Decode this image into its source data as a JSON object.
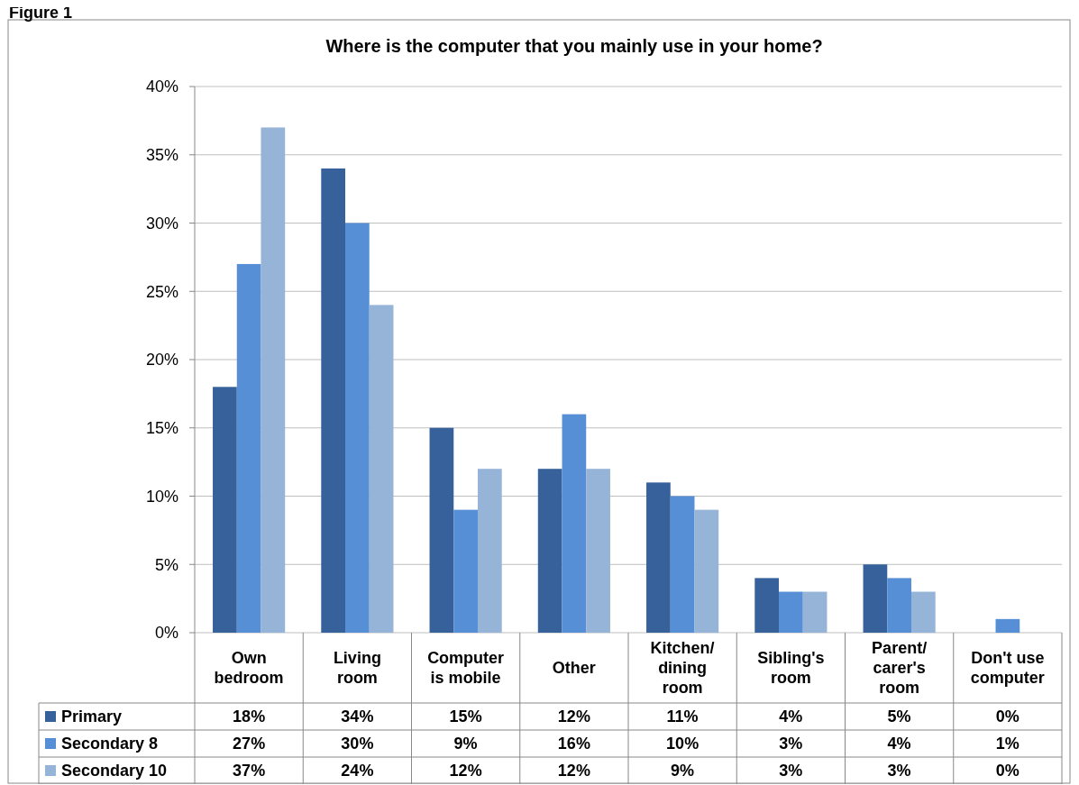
{
  "chart_data": {
    "type": "bar",
    "title": "Where is the computer that you mainly use in your home?",
    "annotations": [
      "Figure 1"
    ],
    "categories": [
      "Own bedroom",
      "Living room",
      "Computer is mobile",
      "Other",
      "Kitchen/ dining room",
      "Sibling's room",
      "Parent/ carer's room",
      "Don't use computer"
    ],
    "series": [
      {
        "name": "Primary",
        "color": "#36619a",
        "values": [
          18,
          34,
          15,
          12,
          11,
          4,
          5,
          0
        ],
        "value_labels": [
          "18%",
          "34%",
          "15%",
          "12%",
          "11%",
          "4%",
          "5%",
          "0%"
        ]
      },
      {
        "name": "Secondary 8",
        "color": "#568fd6",
        "values": [
          27,
          30,
          9,
          16,
          10,
          3,
          4,
          1
        ],
        "value_labels": [
          "27%",
          "30%",
          "9%",
          "16%",
          "10%",
          "3%",
          "4%",
          "1%"
        ]
      },
      {
        "name": "Secondary 10",
        "color": "#96b3d8",
        "values": [
          37,
          24,
          12,
          12,
          9,
          3,
          3,
          0
        ],
        "value_labels": [
          "37%",
          "24%",
          "12%",
          "12%",
          "9%",
          "3%",
          "3%",
          "0%"
        ]
      }
    ],
    "ylim": [
      0,
      40
    ],
    "yticks": [
      {
        "value": 0,
        "label": "0%"
      },
      {
        "value": 5,
        "label": "5%"
      },
      {
        "value": 10,
        "label": "10%"
      },
      {
        "value": 15,
        "label": "15%"
      },
      {
        "value": 20,
        "label": "20%"
      },
      {
        "value": 25,
        "label": "25%"
      },
      {
        "value": 30,
        "label": "30%"
      },
      {
        "value": 35,
        "label": "35%"
      },
      {
        "value": 40,
        "label": "40%"
      }
    ],
    "grid": "y",
    "legend": "bottom"
  }
}
